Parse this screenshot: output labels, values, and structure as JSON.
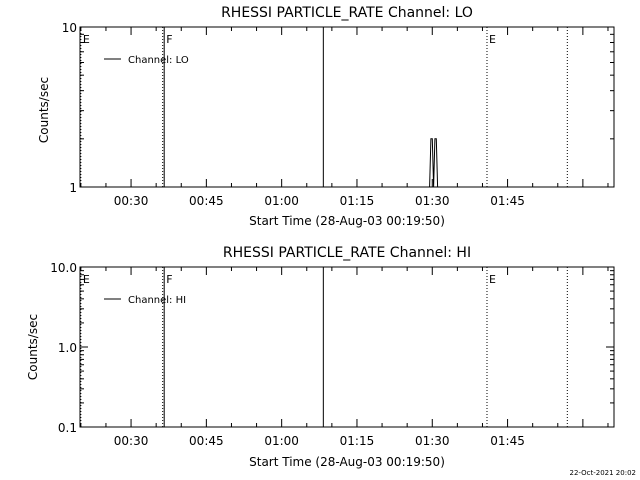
{
  "chart_data": [
    {
      "type": "line",
      "title": "RHESSI PARTICLE_RATE Channel: LO",
      "xlabel": "Start Time (28-Aug-03 00:19:50)",
      "ylabel": "Counts/sec",
      "x_unit": "minutes",
      "xlim": [
        19.83,
        126.2
      ],
      "ylim": [
        1,
        10
      ],
      "y_scale": "log",
      "x_ticks": [
        {
          "value": 30,
          "label": "00:30"
        },
        {
          "value": 45,
          "label": "00:45"
        },
        {
          "value": 60,
          "label": "01:00"
        },
        {
          "value": 75,
          "label": "01:15"
        },
        {
          "value": 90,
          "label": "01:30"
        },
        {
          "value": 105,
          "label": "01:45"
        }
      ],
      "y_ticks": [
        {
          "value": 1,
          "label": "1"
        },
        {
          "value": 10,
          "label": "10"
        }
      ],
      "series": [
        {
          "name": "Channel: LO",
          "x": [
            89.47,
            89.73,
            90.0,
            90.27,
            90.53,
            90.8,
            91.07
          ],
          "y": [
            1,
            2,
            2,
            1,
            2,
            2,
            1
          ]
        }
      ],
      "legend": "top-left",
      "grid": false,
      "markers": [
        {
          "value": 20.0,
          "label": "E",
          "style": "dotted"
        },
        {
          "value": 36.3,
          "label": "",
          "style": "dotted"
        },
        {
          "value": 36.6,
          "label": "F",
          "style": "solid"
        },
        {
          "value": 68.3,
          "label": "",
          "style": "solid"
        },
        {
          "value": 100.9,
          "label": "E",
          "style": "dotted"
        },
        {
          "value": 116.9,
          "label": "",
          "style": "dotted"
        }
      ]
    },
    {
      "type": "line",
      "title": "RHESSI PARTICLE_RATE Channel: HI",
      "xlabel": "Start Time (28-Aug-03 00:19:50)",
      "ylabel": "Counts/sec",
      "x_unit": "minutes",
      "xlim": [
        19.83,
        126.2
      ],
      "ylim": [
        0.1,
        10
      ],
      "y_scale": "log",
      "x_ticks": [
        {
          "value": 30,
          "label": "00:30"
        },
        {
          "value": 45,
          "label": "00:45"
        },
        {
          "value": 60,
          "label": "01:00"
        },
        {
          "value": 75,
          "label": "01:15"
        },
        {
          "value": 90,
          "label": "01:30"
        },
        {
          "value": 105,
          "label": "01:45"
        }
      ],
      "y_ticks": [
        {
          "value": 0.1,
          "label": "0.1"
        },
        {
          "value": 1,
          "label": "1.0"
        },
        {
          "value": 10,
          "label": "10.0"
        }
      ],
      "series": [
        {
          "name": "Channel: HI",
          "x": [],
          "y": []
        }
      ],
      "legend": "top-left",
      "grid": false,
      "markers": [
        {
          "value": 20.0,
          "label": "E",
          "style": "dotted"
        },
        {
          "value": 36.3,
          "label": "",
          "style": "dotted"
        },
        {
          "value": 36.6,
          "label": "F",
          "style": "solid"
        },
        {
          "value": 68.3,
          "label": "",
          "style": "solid"
        },
        {
          "value": 100.9,
          "label": "E",
          "style": "dotted"
        },
        {
          "value": 116.9,
          "label": "",
          "style": "dotted"
        }
      ]
    }
  ],
  "footer": {
    "timestamp": "22-Oct-2021 20:02"
  },
  "colors": {
    "background": "#ffffff",
    "foreground": "#000000"
  }
}
